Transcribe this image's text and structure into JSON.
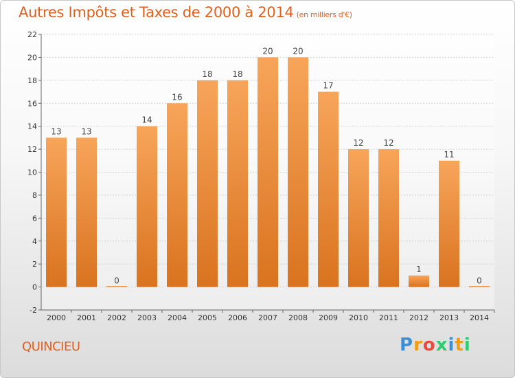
{
  "title": "Autres Impôts et Taxes de 2000 à 2014",
  "subtitle": "(en milliers d'€)",
  "commune": "QUINCIEU",
  "logo": {
    "letters": [
      "P",
      "r",
      "o",
      "x",
      "i",
      "t",
      "i"
    ],
    "colors": [
      "#3a8fd6",
      "#f39c12",
      "#e74c3c",
      "#2ecc71",
      "#3a8fd6",
      "#f39c12",
      "#2ecc71"
    ]
  },
  "colors": {
    "bar_top": "#f7a55a",
    "bar_bottom": "#d9731f",
    "title": "#e25f1c"
  },
  "chart_data": {
    "type": "bar",
    "title": "Autres Impôts et Taxes de 2000 à 2014",
    "categories": [
      "2000",
      "2001",
      "2002",
      "2003",
      "2004",
      "2005",
      "2006",
      "2007",
      "2008",
      "2009",
      "2010",
      "2011",
      "2012",
      "2013",
      "2014"
    ],
    "values": [
      13,
      13,
      0,
      14,
      16,
      18,
      18,
      20,
      20,
      17,
      12,
      12,
      1,
      11,
      0
    ],
    "yticks": [
      -2,
      0,
      2,
      4,
      6,
      8,
      10,
      12,
      14,
      16,
      18,
      20,
      22
    ],
    "ylim": [
      -2,
      22
    ],
    "grid": true
  }
}
